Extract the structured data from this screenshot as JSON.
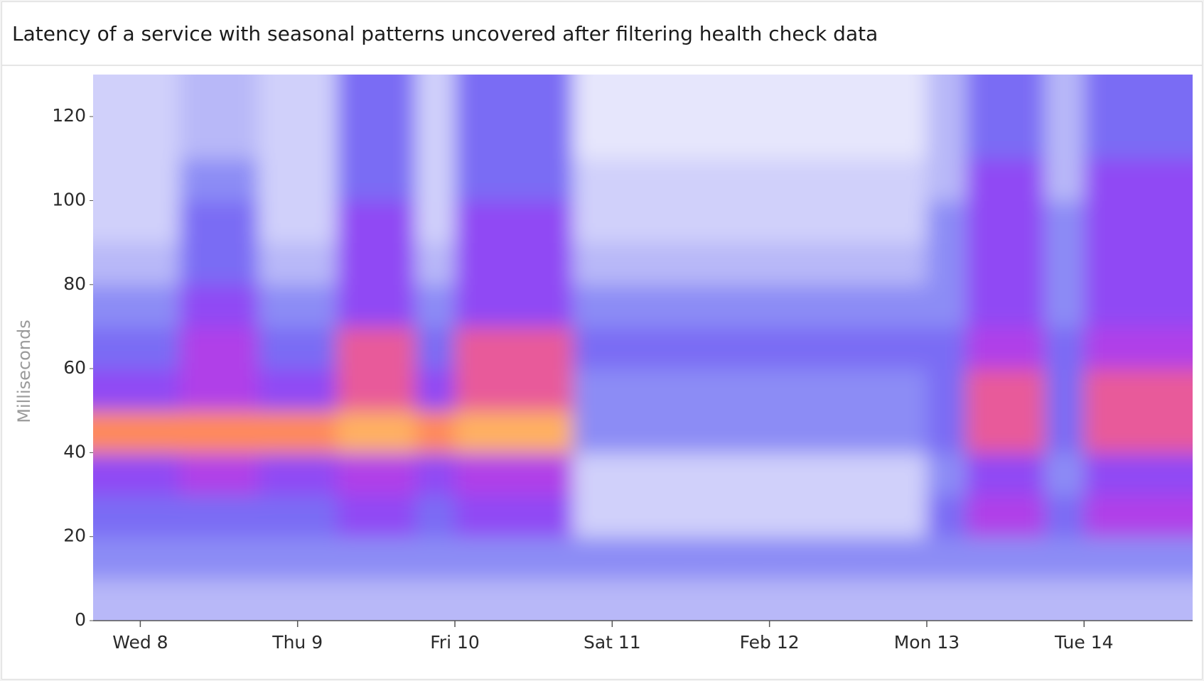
{
  "chart_data": {
    "type": "heatmap",
    "title": "Latency of a service with seasonal patterns uncovered after filtering health check data",
    "y_label": "Milliseconds",
    "x": [
      7.875,
      8.125,
      8.375,
      8.625,
      8.875,
      9.125,
      9.375,
      9.625,
      9.875,
      10.125,
      10.375,
      10.625,
      10.875,
      11.125,
      11.375,
      11.625,
      11.875,
      12.125,
      12.375,
      12.625,
      12.875,
      13.125,
      13.375,
      13.625,
      13.875,
      14.125,
      14.375,
      14.625
    ],
    "y": [
      5,
      15,
      25,
      35,
      45,
      55,
      65,
      75,
      85,
      95,
      105,
      115,
      125
    ],
    "z": [
      [
        2,
        2,
        2,
        2,
        2,
        2,
        2,
        2,
        2,
        2,
        2,
        2,
        2,
        2,
        2,
        2,
        2,
        2,
        2,
        2,
        2,
        2,
        2,
        2,
        2,
        2,
        2,
        2
      ],
      [
        3,
        3,
        3,
        3,
        3,
        3,
        3,
        3,
        3,
        3,
        3,
        3,
        3,
        3,
        3,
        3,
        3,
        3,
        3,
        3,
        3,
        3,
        3,
        3,
        3,
        3,
        3,
        3
      ],
      [
        4,
        4,
        4,
        4,
        4,
        4,
        5,
        5,
        4,
        5,
        5,
        5,
        1,
        1,
        1,
        1,
        1,
        1,
        1,
        1,
        1,
        4,
        6,
        6,
        4,
        6,
        6,
        6
      ],
      [
        5,
        5,
        6,
        6,
        5,
        5,
        6,
        6,
        5,
        6,
        6,
        6,
        1,
        1,
        1,
        1,
        1,
        1,
        1,
        1,
        1,
        3,
        5,
        5,
        3,
        5,
        5,
        5
      ],
      [
        8,
        8,
        8,
        8,
        8,
        8,
        9,
        9,
        8,
        9,
        9,
        9,
        3,
        3,
        3,
        3,
        3,
        3,
        3,
        3,
        3,
        4,
        7,
        7,
        4,
        7,
        7,
        7
      ],
      [
        5,
        5,
        6,
        6,
        5,
        5,
        7,
        7,
        5,
        7,
        7,
        7,
        3,
        3,
        3,
        3,
        3,
        3,
        3,
        3,
        3,
        4,
        7,
        7,
        4,
        7,
        7,
        7
      ],
      [
        4,
        4,
        6,
        6,
        4,
        4,
        7,
        7,
        4,
        7,
        7,
        7,
        4,
        4,
        4,
        4,
        4,
        4,
        4,
        4,
        4,
        4,
        6,
        6,
        4,
        6,
        6,
        6
      ],
      [
        3,
        3,
        5,
        5,
        3,
        3,
        5,
        5,
        3,
        5,
        5,
        5,
        3,
        3,
        3,
        3,
        3,
        3,
        3,
        3,
        3,
        3,
        5,
        5,
        3,
        5,
        5,
        5
      ],
      [
        2,
        2,
        4,
        4,
        2,
        2,
        5,
        5,
        2,
        5,
        5,
        5,
        2,
        2,
        2,
        2,
        2,
        2,
        2,
        2,
        2,
        3,
        5,
        5,
        3,
        5,
        5,
        5
      ],
      [
        1,
        1,
        4,
        4,
        1,
        1,
        5,
        5,
        1,
        5,
        5,
        5,
        1,
        1,
        1,
        1,
        1,
        1,
        1,
        1,
        1,
        3,
        5,
        5,
        3,
        5,
        5,
        5
      ],
      [
        1,
        1,
        3,
        3,
        1,
        1,
        4,
        4,
        1,
        4,
        4,
        4,
        1,
        1,
        1,
        1,
        1,
        1,
        1,
        1,
        1,
        2,
        5,
        5,
        2,
        5,
        5,
        5
      ],
      [
        1,
        1,
        2,
        2,
        1,
        1,
        4,
        4,
        1,
        4,
        4,
        4,
        0,
        0,
        0,
        0,
        0,
        0,
        0,
        0,
        0,
        2,
        4,
        4,
        2,
        4,
        4,
        4
      ],
      [
        1,
        1,
        2,
        2,
        1,
        1,
        4,
        4,
        1,
        4,
        4,
        4,
        0,
        0,
        0,
        0,
        0,
        0,
        0,
        0,
        0,
        2,
        4,
        4,
        2,
        4,
        4,
        4
      ]
    ],
    "colorscale": [
      "#e6e6fc",
      "#d0d0fa",
      "#b8b8f8",
      "#8c8cf5",
      "#7a6cf4",
      "#9048f4",
      "#b040e8",
      "#e85a9a",
      "#ff8a5a",
      "#ffb060"
    ],
    "xlim": [
      7.7,
      14.69
    ],
    "xticks": [
      {
        "value": 8,
        "label": "Wed 8"
      },
      {
        "value": 9,
        "label": "Thu 9"
      },
      {
        "value": 10,
        "label": "Fri 10"
      },
      {
        "value": 11,
        "label": "Sat 11"
      },
      {
        "value": 12,
        "label": "Feb 12"
      },
      {
        "value": 13,
        "label": "Mon 13"
      },
      {
        "value": 14,
        "label": "Tue 14"
      }
    ],
    "ylim": [
      0,
      130
    ],
    "yticks": [
      0,
      20,
      40,
      60,
      80,
      100,
      120
    ]
  }
}
